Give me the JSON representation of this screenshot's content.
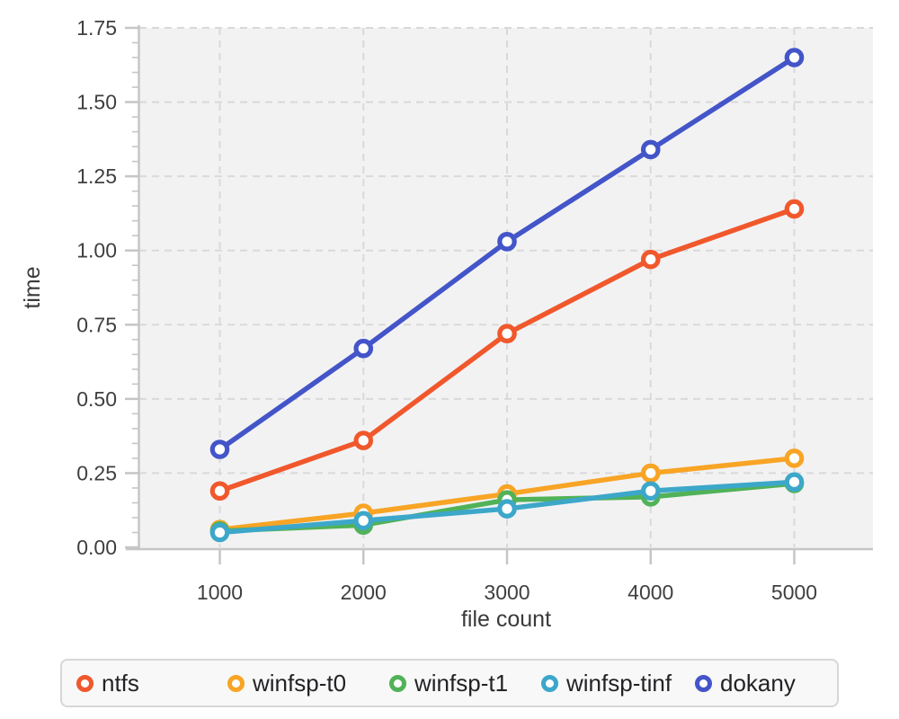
{
  "chart_data": {
    "type": "line",
    "title": "",
    "xlabel": "file count",
    "ylabel": "time",
    "categories": [
      1000,
      2000,
      3000,
      4000,
      5000
    ],
    "xtick_labels": [
      "1000",
      "2000",
      "3000",
      "4000",
      "5000"
    ],
    "ytick_labels": [
      "0.00",
      "0.25",
      "0.50",
      "0.75",
      "1.00",
      "1.25",
      "1.50",
      "1.75"
    ],
    "ylim": [
      0,
      1.75
    ],
    "ytick_step": 0.25,
    "yminor_step": 0.05,
    "grid": "dashed",
    "legend_position": "bottom",
    "series": [
      {
        "name": "ntfs",
        "color": "#f0582c",
        "values": [
          0.19,
          0.36,
          0.72,
          0.97,
          1.14
        ]
      },
      {
        "name": "winfsp-t0",
        "color": "#f8a425",
        "values": [
          0.06,
          0.115,
          0.18,
          0.25,
          0.3
        ]
      },
      {
        "name": "winfsp-t1",
        "color": "#51b257",
        "values": [
          0.055,
          0.075,
          0.16,
          0.17,
          0.215
        ]
      },
      {
        "name": "winfsp-tinf",
        "color": "#3ca7c9",
        "values": [
          0.05,
          0.09,
          0.13,
          0.19,
          0.22
        ]
      },
      {
        "name": "dokany",
        "color": "#4355c8",
        "values": [
          0.33,
          0.67,
          1.03,
          1.34,
          1.65
        ]
      }
    ]
  },
  "style_colors": {
    "plot_background": "#f2f2f3",
    "gridline": "#d9d9da",
    "axis_spine": "#c6c6c8",
    "tick_label": "#3f3f41",
    "axis_label": "#3a3a3c",
    "legend_background": "#f8f8f9",
    "legend_border": "#d7d7d9",
    "legend_text": "#232326",
    "marker_fill": "#ffffff"
  }
}
